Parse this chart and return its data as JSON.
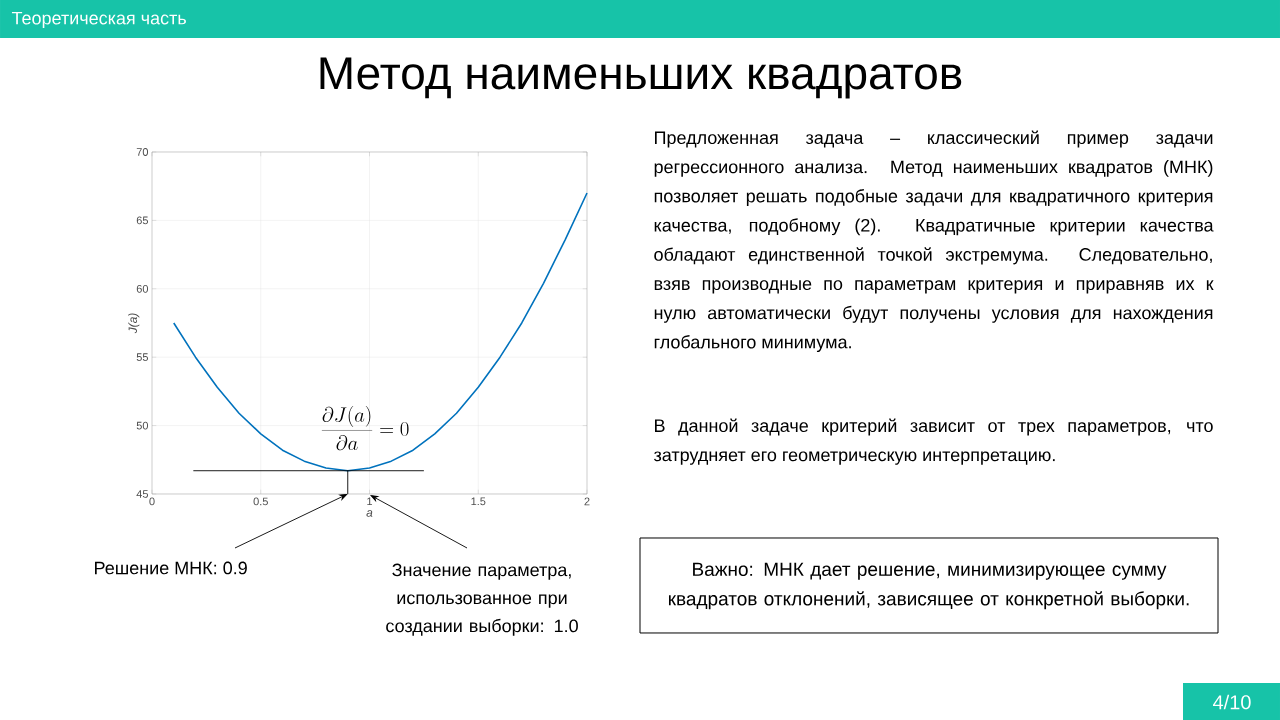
{
  "chart_data": {
    "type": "line",
    "title": "Метод наименьших квадратов",
    "xlabel": "a",
    "ylabel": "J(a)",
    "x": [
      0.1,
      0.2,
      0.3,
      0.4,
      0.5,
      0.6,
      0.7,
      0.8,
      0.9,
      1.0,
      1.1,
      1.2,
      1.3,
      1.4,
      1.5,
      1.6,
      1.7,
      1.8,
      1.9,
      2.0
    ],
    "series": [
      {
        "color": "#0072bd",
        "values": [
          57.5,
          55.0,
          52.8,
          50.9,
          49.4,
          48.2,
          47.4,
          46.9,
          46.7,
          46.9,
          47.4,
          48.2,
          49.4,
          50.9,
          52.8,
          55.0,
          57.5,
          60.4,
          63.6,
          67.0
        ]
      },
      {
        "color": "#000000",
        "x": [
          0.19,
          1.25
        ],
        "values": [
          46.7,
          46.7
        ]
      },
      {
        "color": "#000000",
        "x": [
          0.9,
          0.9
        ],
        "values": [
          45,
          46.7
        ]
      }
    ],
    "xlim": [
      0,
      2
    ],
    "ylim": [
      45,
      70
    ],
    "xticks": [
      0,
      0.5,
      1,
      1.5,
      2
    ],
    "yticks": [
      45,
      50,
      55,
      60,
      65,
      70
    ],
    "grid": true,
    "annotations": [
      "Теоретическая часть",
      "\\frac{\\partial J(a)}{\\partial a}=0",
      "Предложенная задача – классический пример задачи регрессионного анализа. Метод наименьших квадратов (МНК) позволяет решать подобные задачи для квадратичного критерия качества, подобному (2). Квадратичные критерии качества обладают единственной точкой экстремума. Следовательно, взяв производные по параметрам критерия и приравняв их к нулю автоматически будут получены условия для нахождения глобального минимума.",
      "В данной задаче критерий зависит от трех параметров, что затрудняет его геометрическую интерпретацию.",
      "Важно: МНК дает решение, минимизирующее сумму квадратов отклонений, зависящее от конкретной выборки.",
      {
        "text": "Решение МНК: 0.9",
        "x": 0.9,
        "y": 45
      },
      "Значение параметра, использованное при создании выборки: 1.0",
      "4/10"
    ]
  }
}
